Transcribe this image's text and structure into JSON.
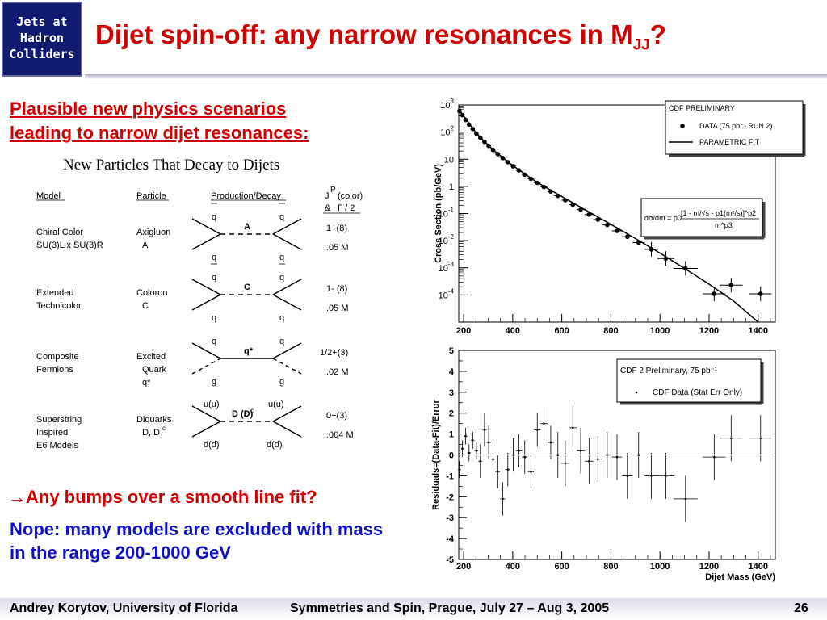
{
  "header": {
    "logo_lines": [
      "Jets at",
      "Hadron",
      "Colliders"
    ],
    "title_main": "Dijet spin-off: any narrow resonances in M",
    "title_sub": "JJ",
    "title_end": "?"
  },
  "left": {
    "heading_line1": "Plausible new physics scenarios",
    "heading_line2": "leading to narrow dijet resonances",
    "heading_colon": ":",
    "table_title": "New Particles That Decay to Dijets",
    "columns": [
      "Model",
      "Particle",
      "Production/Decay"
    ],
    "jp_header": [
      "J",
      "P",
      "(color)",
      "&",
      "Γ / 2"
    ],
    "rows": [
      {
        "model": [
          "Chiral Color",
          "SU(3)L x SU(3)R"
        ],
        "particle": [
          "Axigluon",
          "A"
        ],
        "top": [
          "q",
          "q"
        ],
        "bottom": [
          "q",
          "q"
        ],
        "mid": "A",
        "jp": "1+(8)",
        "width": ".05 M"
      },
      {
        "model": [
          "Extended",
          "Technicolor"
        ],
        "particle": [
          "Coloron",
          "C"
        ],
        "top": [
          "q",
          "q"
        ],
        "bottom": [
          "q",
          "q"
        ],
        "mid": "C",
        "jp": "1- (8)",
        "width": ".05 M"
      },
      {
        "model": [
          "Composite",
          "Fermions"
        ],
        "particle": [
          "Excited",
          "Quark",
          "q*"
        ],
        "top": [
          "q",
          "q"
        ],
        "bottom": [
          "g",
          "g"
        ],
        "mid": "q*",
        "jp": "1/2+(3)",
        "width": ".02 M"
      },
      {
        "model": [
          "Superstring",
          "Inspired",
          "E6 Models"
        ],
        "particle": [
          "Diquarks",
          "D, D",
          "c"
        ],
        "top": [
          "u(u)",
          "u(u)"
        ],
        "bottom": [
          "d(d)",
          "d(d)"
        ],
        "mid": "D (D)",
        "mid_sup": "c",
        "jp": "0+(3)",
        "width": ".004 M"
      }
    ],
    "bumps": "→Any bumps over a smooth line fit?",
    "nope": "Nope: many models are excluded with mass in the range 200-1000 GeV"
  },
  "footer": {
    "author": "Andrey Korytov, University of Florida",
    "conference": "Symmetries and Spin, Prague, July 27 – Aug 3, 2005",
    "page": "26"
  },
  "chart_data": [
    {
      "type": "scatter",
      "ylabel": "Cross Section (pb/GeV)",
      "xlabel": "",
      "xlim": [
        180,
        1470
      ],
      "ylim": [
        1e-05,
        1000
      ],
      "yscale": "log",
      "xticks": [
        "200",
        "400",
        "600",
        "800",
        "1000",
        "1200",
        "1400"
      ],
      "yticks": [
        "10^3",
        "10^2",
        "10",
        "1",
        "10^-1",
        "10^-2",
        "10^-3",
        "10^-4"
      ],
      "legend_box": [
        "CDF PRELIMINARY",
        "DATA (75 pb⁻¹ RUN 2)",
        "PARAMETRIC FIT"
      ],
      "formula_lhs": "dσ/dm = p0",
      "formula_num": "[1 - m/√s - p1(m²/s)]^p2",
      "formula_den": "m^p3",
      "series": [
        {
          "name": "DATA (75 pb⁻¹ RUN 2)",
          "x": [
            183,
            195,
            208,
            222,
            237,
            252,
            268,
            285,
            302,
            320,
            339,
            359,
            380,
            402,
            425,
            449,
            474,
            500,
            527,
            555,
            584,
            614,
            645,
            677,
            711,
            747,
            785,
            825,
            867,
            913,
            965,
            1024,
            1104,
            1221,
            1290,
            1410
          ],
          "y": [
            600,
            420,
            280,
            190,
            130,
            88,
            62,
            44,
            31,
            22,
            15.5,
            11,
            7.8,
            5.5,
            3.9,
            2.7,
            1.9,
            1.35,
            0.95,
            0.65,
            0.45,
            0.31,
            0.21,
            0.14,
            0.092,
            0.06,
            0.038,
            0.023,
            0.014,
            0.0085,
            0.0048,
            0.0022,
            0.00095,
            0.00011,
            0.00023,
            0.00011
          ]
        },
        {
          "name": "PARAMETRIC FIT",
          "x": [
            180,
            250,
            320,
            400,
            500,
            600,
            700,
            800,
            900,
            1000,
            1100,
            1200,
            1300,
            1400
          ],
          "y": [
            700,
            95,
            22,
            5.8,
            1.4,
            0.42,
            0.13,
            0.04,
            0.012,
            0.0035,
            0.00095,
            0.00025,
            6e-05,
            1e-05
          ]
        }
      ]
    },
    {
      "type": "scatter",
      "ylabel": "Residuals=(Data-Fit)/Error",
      "xlabel": "Dijet Mass (GeV)",
      "xlim": [
        180,
        1470
      ],
      "ylim": [
        -5,
        5
      ],
      "xticks": [
        "200",
        "400",
        "600",
        "800",
        "1000",
        "1200",
        "1400"
      ],
      "yticks": [
        "5",
        "4",
        "3",
        "2",
        "1",
        "0",
        "-1",
        "-2",
        "-3",
        "-4",
        "-5"
      ],
      "legend_box": [
        "CDF 2 Preliminary, 75 pb⁻¹",
        "CDF Data (Stat Err Only)"
      ],
      "series": [
        {
          "name": "CDF Data (Stat Err Only)",
          "x": [
            183,
            195,
            208,
            222,
            237,
            252,
            268,
            285,
            302,
            320,
            339,
            359,
            380,
            402,
            425,
            449,
            474,
            500,
            527,
            555,
            584,
            614,
            645,
            677,
            711,
            747,
            785,
            825,
            867,
            913,
            965,
            1024,
            1104,
            1221,
            1290,
            1410
          ],
          "y": [
            -0.7,
            0.3,
            0.9,
            0.1,
            0.7,
            0.2,
            -0.3,
            1.2,
            0.6,
            -0.2,
            -0.8,
            -2.1,
            -0.7,
            0.0,
            0.2,
            -0.1,
            -0.8,
            1.2,
            1.5,
            0.6,
            0.0,
            -0.4,
            1.3,
            0.2,
            -0.3,
            -0.2,
            0.0,
            -0.1,
            -1.0,
            0.0,
            -1.0,
            -1.0,
            -2.1,
            -0.1,
            0.8,
            0.8
          ]
        }
      ]
    }
  ]
}
